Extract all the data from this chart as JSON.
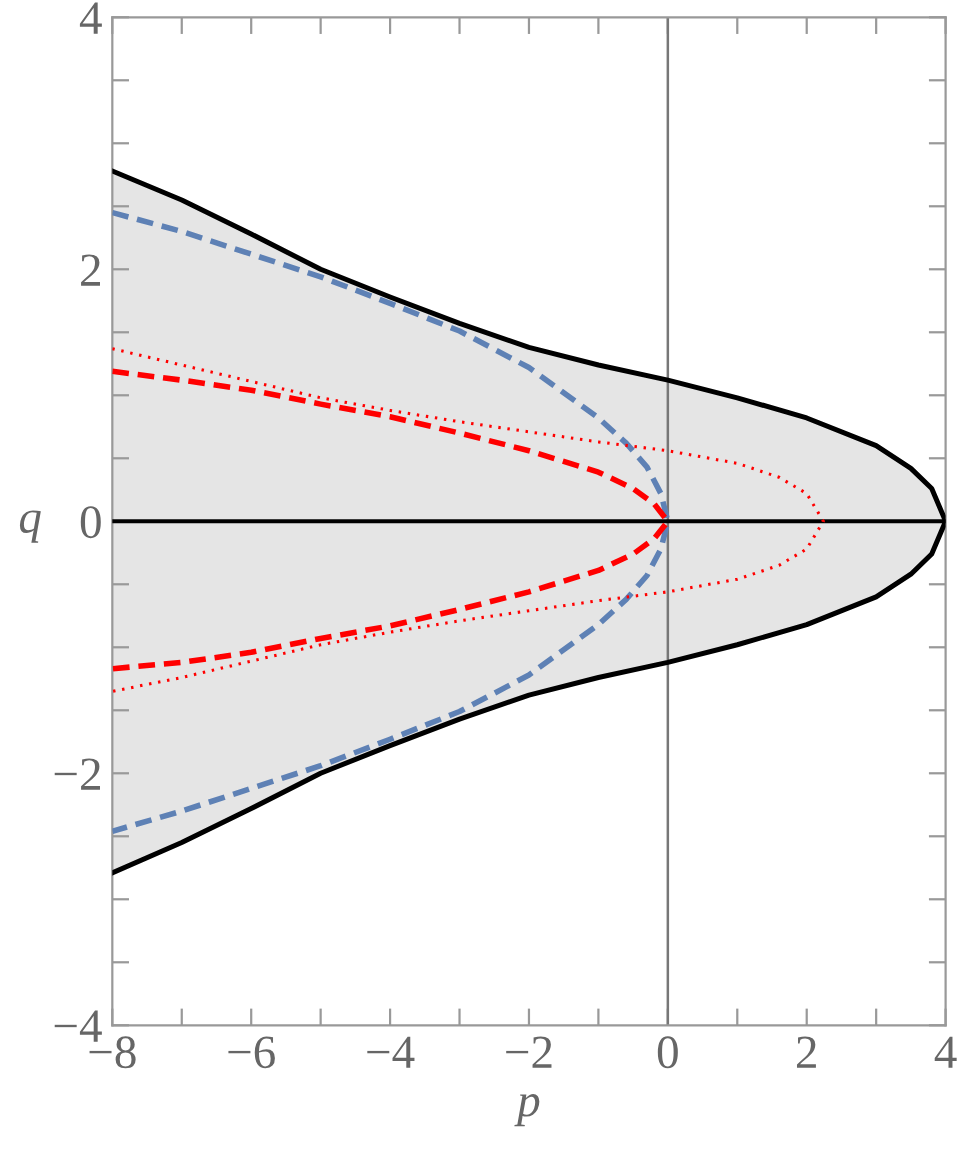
{
  "chart_data": {
    "type": "line",
    "xlabel": "p",
    "ylabel": "q",
    "xlim": [
      -8,
      4
    ],
    "ylim": [
      -4,
      4
    ],
    "xticks": [
      {
        "value": -8,
        "label": "−8"
      },
      {
        "value": -7,
        "label": null
      },
      {
        "value": -6,
        "label": "−6"
      },
      {
        "value": -5,
        "label": null
      },
      {
        "value": -4,
        "label": "−4"
      },
      {
        "value": -3,
        "label": null
      },
      {
        "value": -2,
        "label": "−2"
      },
      {
        "value": -1,
        "label": null
      },
      0,
      {
        "value": 1,
        "label": null
      },
      2,
      {
        "value": 3,
        "label": null
      },
      4
    ],
    "yticks": [
      {
        "value": -4,
        "label": "−4"
      },
      {
        "value": -3.5,
        "label": null
      },
      {
        "value": -3,
        "label": null
      },
      {
        "value": -2.5,
        "label": null
      },
      {
        "value": -2,
        "label": "−2"
      },
      {
        "value": -1.5,
        "label": null
      },
      {
        "value": -1,
        "label": null
      },
      {
        "value": -0.5,
        "label": null
      },
      0,
      {
        "value": 0.5,
        "label": null
      },
      {
        "value": 1,
        "label": null
      },
      {
        "value": 1.5,
        "label": null
      },
      2,
      {
        "value": 2.5,
        "label": null
      },
      {
        "value": 3,
        "label": null
      },
      {
        "value": 3.5,
        "label": null
      },
      4
    ],
    "grid": false,
    "legend": false,
    "ref_lines": [
      {
        "axis": "x",
        "value": 0,
        "color": "#777777"
      },
      {
        "axis": "y",
        "value": 0,
        "color": "#000000"
      }
    ],
    "series": [
      {
        "type": "area",
        "color": "#e5e5e5",
        "x": [
          -8,
          -7,
          -6,
          -5,
          -4,
          -3,
          -2,
          -1,
          0,
          1,
          2,
          3,
          3.5,
          3.8,
          4
        ],
        "values": [
          2.78,
          2.55,
          2.28,
          2.0,
          1.78,
          1.57,
          1.38,
          1.24,
          1.12,
          0.98,
          0.82,
          0.6,
          0.42,
          0.26,
          0
        ]
      },
      {
        "type": "area",
        "color": "#e5e5e5",
        "x": [
          -8,
          -7,
          -6,
          -5,
          -4,
          -3,
          -2,
          -1,
          0,
          1,
          2,
          3,
          3.5,
          3.8,
          4
        ],
        "values": [
          -2.79,
          -2.55,
          -2.28,
          -2.0,
          -1.78,
          -1.57,
          -1.38,
          -1.24,
          -1.12,
          -0.98,
          -0.82,
          -0.6,
          -0.42,
          -0.26,
          0
        ]
      },
      {
        "color": "#000000",
        "line_style": "solid",
        "x": [
          -8,
          -7,
          -6,
          -5,
          -4,
          -3,
          -2,
          -1,
          0,
          1,
          2,
          3,
          3.5,
          3.8,
          4,
          3.8,
          3.5,
          3,
          2,
          1,
          0,
          -1,
          -2,
          -3,
          -4,
          -5,
          -6,
          -7,
          -8
        ],
        "values": [
          2.78,
          2.55,
          2.28,
          2.0,
          1.78,
          1.57,
          1.38,
          1.24,
          1.12,
          0.98,
          0.82,
          0.6,
          0.42,
          0.26,
          0,
          -0.26,
          -0.42,
          -0.6,
          -0.82,
          -0.98,
          -1.12,
          -1.24,
          -1.38,
          -1.57,
          -1.78,
          -2.0,
          -2.28,
          -2.55,
          -2.79
        ]
      },
      {
        "color": "#5e81b5",
        "line_style": "dashed",
        "x": [
          -8,
          -7,
          -6,
          -5,
          -4,
          -3,
          -2,
          -1.5,
          -1,
          -0.6,
          -0.3,
          -0.1,
          0,
          -0.1,
          -0.3,
          -0.6,
          -1,
          -1.5,
          -2,
          -3,
          -4,
          -5,
          -6,
          -7,
          -8
        ],
        "values": [
          2.45,
          2.3,
          2.12,
          1.94,
          1.73,
          1.51,
          1.22,
          1.02,
          0.82,
          0.62,
          0.43,
          0.22,
          0,
          -0.22,
          -0.43,
          -0.62,
          -0.82,
          -1.02,
          -1.22,
          -1.51,
          -1.73,
          -1.94,
          -2.12,
          -2.3,
          -2.46
        ]
      },
      {
        "color": "#ff0000",
        "line_style": "dashed",
        "x": [
          -8,
          -7,
          -6,
          -5,
          -4,
          -3,
          -2,
          -1,
          -0.5,
          -0.2,
          0,
          -0.2,
          -0.5,
          -1,
          -2,
          -3,
          -4,
          -5,
          -6,
          -7,
          -8
        ],
        "values": [
          1.19,
          1.12,
          1.04,
          0.93,
          0.83,
          0.7,
          0.56,
          0.39,
          0.26,
          0.14,
          0,
          -0.14,
          -0.26,
          -0.39,
          -0.56,
          -0.7,
          -0.83,
          -0.93,
          -1.04,
          -1.12,
          -1.17
        ]
      },
      {
        "color": "#ff0000",
        "line_style": "dotted",
        "x": [
          -8,
          -7,
          -6,
          -5,
          -4,
          -3,
          -2,
          -1,
          0,
          1,
          1.6,
          2,
          2.24,
          2,
          1.6,
          1,
          0,
          -1,
          -2,
          -3,
          -4,
          -5,
          -6,
          -7,
          -8
        ],
        "values": [
          1.37,
          1.24,
          1.11,
          0.98,
          0.88,
          0.79,
          0.71,
          0.63,
          0.56,
          0.46,
          0.35,
          0.22,
          0,
          -0.22,
          -0.35,
          -0.46,
          -0.56,
          -0.63,
          -0.71,
          -0.79,
          -0.88,
          -0.98,
          -1.11,
          -1.24,
          -1.35
        ]
      }
    ]
  }
}
